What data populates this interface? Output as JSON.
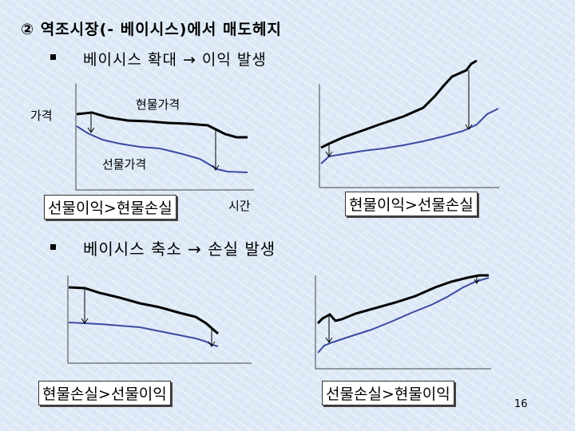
{
  "title": "② 역조시장(- 베이시스)에서 매도헤지",
  "section1": {
    "heading": "베이시스 확대 → 이익 발생"
  },
  "section2": {
    "heading": "베이시스 축소 → 손실 발생"
  },
  "labels": {
    "price": "가격",
    "spot_price": "현물가격",
    "futures_price": "선물가격",
    "time": "시간"
  },
  "panels": [
    {
      "caption": "선물이익>현물손실"
    },
    {
      "caption": "현물이익>선물손실"
    },
    {
      "caption": "현물손실>선물이익"
    },
    {
      "caption": "선물손실>현물이익"
    }
  ],
  "page_number": "16",
  "colors": {
    "spot_line": "#000000",
    "futures_line": "#3c4aa0",
    "axis": "#444444"
  }
}
